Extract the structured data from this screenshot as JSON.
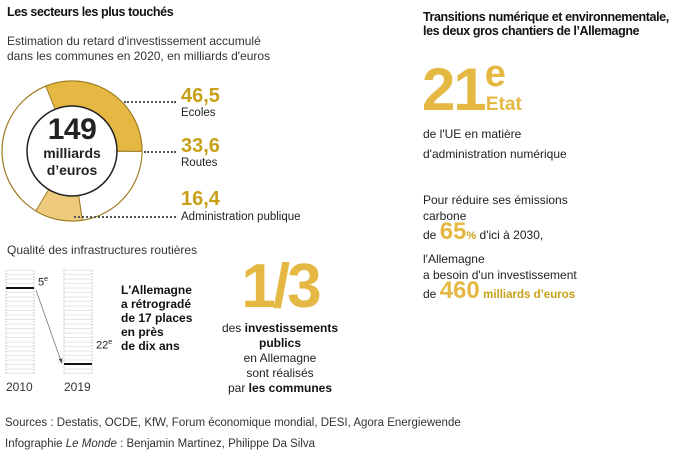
{
  "left": {
    "title": "Les secteurs les plus touchés",
    "subtitle_line1": "Estimation du retard d'investissement accumulé",
    "subtitle_line2": "dans les communes en 2020, en milliards d'euros",
    "donut": {
      "total_value": "149",
      "total_unit_line1": "milliards",
      "total_unit_line2": "d’euros",
      "segments": [
        {
          "value": "46,5",
          "label": "Ecoles",
          "color": "#E4B842"
        },
        {
          "value": "33,6",
          "label": "Routes",
          "color": "#FFFFFF"
        },
        {
          "value": "16,4",
          "label": "Administration publique",
          "color": "#EECB7C"
        }
      ]
    }
  },
  "chart_data": {
    "type": "pie",
    "title": "Estimation du retard d'investissement accumulé dans les communes en 2020, en milliards d'euros",
    "total": 149,
    "categories": [
      "Ecoles",
      "Routes",
      "Administration publique"
    ],
    "values": [
      46.5,
      33.6,
      16.4
    ]
  },
  "roads": {
    "title": "Qualité des infrastructures routières",
    "rank_2010": "5",
    "rank_2019": "22",
    "rank_suffix": "e",
    "year_2010": "2010",
    "year_2019": "2019",
    "text_lines": [
      "L'Allemagne",
      "a rétrogradé",
      "de 17 places",
      "en près",
      "de dix ans"
    ]
  },
  "share": {
    "fraction": "1/3",
    "line1_prefix": "des ",
    "line1_bold": "investissements",
    "line2_bold": "publics",
    "line3": "en Allemagne",
    "line4": "sont réalisés",
    "line5_prefix": "par ",
    "line5_bold": "les communes"
  },
  "right": {
    "title_line1": "Transitions numérique et environnementale,",
    "title_line2": "les deux gros chantiers de l’Allemagne",
    "rank_number": "21",
    "rank_suffix": "e",
    "rank_word": "Etat",
    "rank_desc_line1": "de l'UE en matière",
    "rank_desc_line2": "d'administration numérique",
    "emissions_line1": "Pour réduire ses émissions",
    "emissions_line2": "carbone",
    "de1": "de",
    "pct_value": "65",
    "pct_sign": "%",
    "pct_after": "d'ici à 2030,",
    "need_line1": "l'Allemagne",
    "need_line2": "a besoin d'un investissement",
    "de2": "de",
    "amount_value": "460",
    "amount_unit": "milliards d’euros"
  },
  "footer": {
    "sources": "Sources : Destatis, OCDE, KfW, Forum économique mondial, DESI, Agora Energiewende",
    "credit_prefix": "Infographie ",
    "credit_italic": "Le Monde",
    "credit_suffix": " : Benjamin Martinez, Philippe Da Silva"
  },
  "colors": {
    "gold": "#C8A018",
    "gold_fill": "#E4B842",
    "gold_light": "#EECB7C",
    "ring_stroke": "#9C7A1E"
  }
}
